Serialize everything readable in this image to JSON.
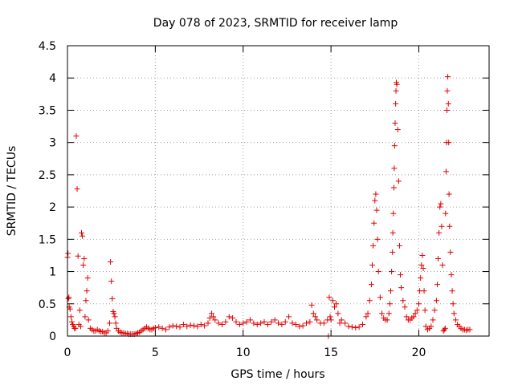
{
  "chart_data": {
    "type": "scatter",
    "title": "Day 078 of 2023, SRMTID for receiver lamp",
    "xlabel": "GPS time / hours",
    "ylabel": "SRMTID / TECUs",
    "xlim": [
      0,
      24
    ],
    "ylim": [
      0,
      4.5
    ],
    "x_ticks": [
      0,
      5,
      10,
      15,
      20
    ],
    "x_tick_labels": [
      "0",
      "5",
      "10",
      "15",
      "20"
    ],
    "y_ticks": [
      0,
      0.5,
      1,
      1.5,
      2,
      2.5,
      3,
      3.5,
      4,
      4.5
    ],
    "y_tick_labels": [
      "0",
      "0.5",
      "1",
      "1.5",
      "2",
      "2.5",
      "3",
      "3.5",
      "4",
      "4.5"
    ],
    "grid": true,
    "marker": "plus",
    "color": "#e00000",
    "series": [
      {
        "name": "SRMTID",
        "x": [
          0.0,
          0.03,
          0.05,
          0.08,
          0.1,
          0.15,
          0.2,
          0.25,
          0.3,
          0.35,
          0.4,
          0.45,
          0.5,
          0.55,
          0.6,
          0.65,
          0.7,
          0.75,
          0.8,
          0.85,
          0.9,
          0.95,
          1.0,
          1.05,
          1.1,
          1.15,
          1.2,
          1.3,
          1.4,
          1.5,
          1.6,
          1.7,
          1.8,
          1.9,
          2.0,
          2.1,
          2.2,
          2.3,
          2.4,
          2.45,
          2.5,
          2.55,
          2.6,
          2.65,
          2.7,
          2.75,
          2.8,
          2.9,
          3.0,
          3.1,
          3.2,
          3.3,
          3.4,
          3.5,
          3.6,
          3.7,
          3.8,
          3.9,
          4.0,
          4.1,
          4.2,
          4.3,
          4.4,
          4.5,
          4.6,
          4.7,
          4.8,
          4.9,
          5.0,
          5.2,
          5.4,
          5.6,
          5.8,
          6.0,
          6.2,
          6.4,
          6.6,
          6.8,
          7.0,
          7.2,
          7.4,
          7.6,
          7.8,
          8.0,
          8.1,
          8.2,
          8.3,
          8.4,
          8.6,
          8.8,
          9.0,
          9.2,
          9.4,
          9.6,
          9.8,
          10.0,
          10.2,
          10.4,
          10.6,
          10.8,
          11.0,
          11.2,
          11.4,
          11.6,
          11.8,
          12.0,
          12.2,
          12.4,
          12.6,
          12.8,
          13.0,
          13.2,
          13.4,
          13.6,
          13.8,
          13.9,
          14.0,
          14.1,
          14.2,
          14.4,
          14.6,
          14.8,
          14.85,
          14.9,
          14.95,
          15.0,
          15.1,
          15.2,
          15.3,
          15.4,
          15.5,
          15.6,
          15.8,
          16.0,
          16.2,
          16.4,
          16.6,
          16.8,
          17.0,
          17.1,
          17.2,
          17.3,
          17.35,
          17.4,
          17.45,
          17.5,
          17.55,
          17.6,
          17.65,
          17.7,
          17.8,
          17.9,
          18.0,
          18.1,
          18.2,
          18.3,
          18.35,
          18.4,
          18.45,
          18.5,
          18.52,
          18.55,
          18.58,
          18.6,
          18.62,
          18.65,
          18.68,
          18.7,
          18.72,
          18.75,
          18.8,
          18.85,
          18.9,
          18.95,
          19.0,
          19.1,
          19.2,
          19.3,
          19.4,
          19.5,
          19.6,
          19.7,
          19.8,
          19.9,
          20.0,
          20.05,
          20.1,
          20.15,
          20.2,
          20.25,
          20.3,
          20.35,
          20.4,
          20.5,
          20.6,
          20.7,
          20.8,
          20.9,
          21.0,
          21.05,
          21.1,
          21.15,
          21.2,
          21.25,
          21.3,
          21.35,
          21.4,
          21.45,
          21.5,
          21.52,
          21.55,
          21.58,
          21.6,
          21.62,
          21.65,
          21.68,
          21.7,
          21.72,
          21.75,
          21.8,
          21.85,
          21.9,
          21.95,
          22.0,
          22.1,
          22.2,
          22.3,
          22.4,
          22.5,
          22.6,
          22.7,
          22.8,
          22.9
        ],
        "y": [
          1.22,
          1.28,
          0.58,
          0.6,
          0.45,
          0.42,
          0.3,
          0.22,
          0.18,
          0.15,
          0.12,
          0.12,
          3.1,
          2.28,
          1.24,
          0.18,
          0.4,
          0.15,
          1.6,
          1.55,
          1.1,
          1.2,
          0.3,
          0.55,
          0.7,
          0.9,
          0.25,
          0.12,
          0.1,
          0.08,
          0.08,
          0.1,
          0.08,
          0.07,
          0.07,
          0.05,
          0.05,
          0.08,
          0.2,
          1.15,
          0.85,
          0.58,
          0.38,
          0.35,
          0.3,
          0.2,
          0.12,
          0.08,
          0.06,
          0.05,
          0.05,
          0.04,
          0.04,
          0.03,
          0.03,
          0.03,
          0.03,
          0.04,
          0.05,
          0.06,
          0.08,
          0.1,
          0.12,
          0.14,
          0.12,
          0.1,
          0.1,
          0.12,
          0.13,
          0.14,
          0.12,
          0.1,
          0.14,
          0.16,
          0.15,
          0.14,
          0.18,
          0.15,
          0.17,
          0.16,
          0.15,
          0.18,
          0.16,
          0.2,
          0.28,
          0.35,
          0.3,
          0.25,
          0.2,
          0.18,
          0.22,
          0.3,
          0.28,
          0.22,
          0.18,
          0.2,
          0.22,
          0.25,
          0.2,
          0.18,
          0.2,
          0.22,
          0.18,
          0.22,
          0.25,
          0.2,
          0.18,
          0.22,
          0.3,
          0.2,
          0.18,
          0.15,
          0.16,
          0.2,
          0.22,
          0.48,
          0.35,
          0.3,
          0.25,
          0.2,
          0.2,
          0.25,
          0.0,
          0.6,
          0.3,
          0.25,
          0.55,
          0.45,
          0.5,
          0.35,
          0.2,
          0.25,
          0.2,
          0.15,
          0.14,
          0.13,
          0.14,
          0.18,
          0.3,
          0.35,
          0.55,
          0.8,
          1.1,
          1.4,
          1.75,
          2.1,
          2.2,
          1.95,
          1.5,
          1.0,
          0.6,
          0.35,
          0.28,
          0.25,
          0.25,
          0.35,
          0.5,
          0.7,
          1.0,
          1.3,
          1.6,
          1.9,
          2.3,
          2.6,
          2.95,
          3.3,
          3.6,
          3.8,
          3.93,
          3.9,
          3.2,
          2.4,
          1.4,
          0.95,
          0.75,
          0.55,
          0.45,
          0.3,
          0.25,
          0.25,
          0.28,
          0.3,
          0.35,
          0.4,
          0.5,
          0.7,
          0.9,
          1.1,
          1.25,
          1.05,
          0.7,
          0.4,
          0.15,
          0.1,
          0.12,
          0.15,
          0.25,
          0.4,
          0.55,
          0.8,
          1.2,
          1.6,
          2.0,
          2.05,
          1.7,
          1.1,
          0.08,
          0.1,
          0.12,
          1.9,
          2.55,
          3.0,
          3.5,
          3.8,
          4.02,
          3.6,
          3.0,
          2.2,
          1.7,
          1.3,
          0.95,
          0.7,
          0.5,
          0.35,
          0.25,
          0.18,
          0.15,
          0.12,
          0.1,
          0.1,
          0.09,
          0.1,
          0.1
        ]
      }
    ]
  }
}
